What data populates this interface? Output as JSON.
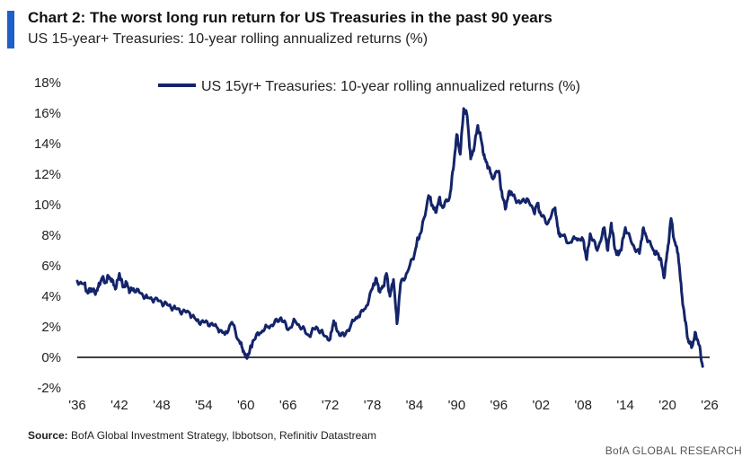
{
  "header": {
    "title": "Chart 2: The worst long run return for US Treasuries in the past 90 years",
    "subtitle": "US 15-year+ Treasuries: 10-year rolling annualized returns (%)"
  },
  "footer": {
    "source_label": "Source:",
    "source_text": "BofA Global Investment Strategy, Ibbotson, Refinitiv Datastream",
    "credit": "BofA GLOBAL RESEARCH"
  },
  "colors": {
    "accent": "#1f5fc8",
    "series": "#14246a",
    "zero_line": "#000000"
  },
  "chart_data": {
    "type": "line",
    "title": "",
    "xlabel": "",
    "ylabel": "",
    "ylim": [
      -2,
      18
    ],
    "xlim": [
      1936,
      2026
    ],
    "yticks": [
      -2,
      0,
      2,
      4,
      6,
      8,
      10,
      12,
      14,
      16,
      18
    ],
    "ytick_labels": [
      "-2%",
      "0%",
      "2%",
      "4%",
      "6%",
      "8%",
      "10%",
      "12%",
      "14%",
      "16%",
      "18%"
    ],
    "xticks": [
      1936,
      1942,
      1948,
      1954,
      1960,
      1966,
      1972,
      1978,
      1984,
      1990,
      1996,
      2002,
      2008,
      2014,
      2020,
      2026
    ],
    "xtick_labels": [
      "'36",
      "'42",
      "'48",
      "'54",
      "'60",
      "'66",
      "'72",
      "'78",
      "'84",
      "'90",
      "'96",
      "'02",
      "'08",
      "'14",
      "'20",
      "'26"
    ],
    "grid": false,
    "legend_position": "top-center",
    "series": [
      {
        "name": "US 15yr+ Treasuries: 10-year rolling annualized returns (%)",
        "x": [
          1936.0,
          1937.0,
          1937.5,
          1938.0,
          1938.5,
          1939.0,
          1939.5,
          1940.0,
          1940.5,
          1941.0,
          1941.5,
          1942.0,
          1942.5,
          1943.0,
          1943.5,
          1944.0,
          1945.0,
          1946.0,
          1947.0,
          1948.0,
          1949.0,
          1950.0,
          1951.0,
          1952.0,
          1953.0,
          1954.0,
          1955.0,
          1956.0,
          1957.0,
          1958.0,
          1959.0,
          1959.5,
          1960.0,
          1960.5,
          1961.0,
          1962.0,
          1963.0,
          1964.0,
          1965.0,
          1966.0,
          1967.0,
          1968.0,
          1969.0,
          1970.0,
          1971.0,
          1972.0,
          1972.5,
          1973.0,
          1974.0,
          1975.0,
          1976.0,
          1977.0,
          1978.0,
          1978.5,
          1979.0,
          1979.5,
          1980.0,
          1980.5,
          1981.0,
          1981.5,
          1982.0,
          1983.0,
          1984.0,
          1984.5,
          1985.0,
          1986.0,
          1986.5,
          1987.0,
          1987.5,
          1988.0,
          1989.0,
          1989.5,
          1990.0,
          1990.5,
          1991.0,
          1991.5,
          1992.0,
          1992.5,
          1993.0,
          1993.5,
          1994.0,
          1994.5,
          1995.0,
          1996.0,
          1996.5,
          1997.0,
          1997.5,
          1998.0,
          1999.0,
          2000.0,
          2001.0,
          2001.5,
          2002.0,
          2003.0,
          2004.0,
          2004.5,
          2005.0,
          2006.0,
          2007.0,
          2008.0,
          2008.5,
          2009.0,
          2010.0,
          2011.0,
          2011.5,
          2012.0,
          2012.5,
          2013.0,
          2013.5,
          2014.0,
          2015.0,
          2016.0,
          2016.5,
          2017.0,
          2018.0,
          2018.5,
          2019.0,
          2019.5,
          2020.0,
          2020.5,
          2021.0,
          2021.5,
          2022.0,
          2022.5,
          2023.0,
          2023.5,
          2024.0,
          2024.5,
          2025.0
        ],
        "values": [
          5.0,
          4.8,
          4.2,
          4.5,
          4.2,
          4.6,
          5.2,
          4.9,
          5.3,
          5.0,
          4.5,
          5.5,
          4.6,
          4.9,
          4.3,
          4.5,
          4.2,
          3.9,
          3.8,
          3.6,
          3.4,
          3.2,
          3.0,
          2.9,
          2.4,
          2.3,
          2.2,
          1.9,
          1.5,
          2.3,
          1.1,
          0.6,
          0.0,
          0.3,
          1.1,
          1.6,
          2.0,
          2.2,
          2.6,
          1.8,
          2.4,
          1.9,
          1.4,
          2.0,
          1.5,
          1.2,
          2.4,
          1.7,
          1.4,
          2.2,
          2.7,
          3.2,
          4.5,
          5.2,
          4.3,
          4.6,
          5.5,
          4.0,
          5.1,
          2.2,
          4.8,
          5.6,
          6.8,
          7.8,
          8.3,
          10.6,
          10.0,
          9.5,
          10.4,
          9.8,
          10.5,
          12.3,
          14.6,
          13.3,
          16.3,
          15.8,
          13.0,
          13.8,
          15.2,
          14.2,
          13.0,
          12.5,
          11.8,
          12.2,
          10.5,
          9.8,
          10.9,
          10.6,
          10.1,
          10.4,
          9.5,
          10.1,
          9.3,
          8.8,
          9.8,
          8.1,
          8.0,
          7.5,
          7.8,
          7.7,
          6.4,
          8.1,
          7.0,
          8.5,
          7.0,
          8.8,
          7.1,
          6.7,
          7.3,
          8.5,
          7.4,
          6.8,
          8.4,
          7.9,
          7.0,
          6.8,
          6.5,
          5.2,
          7.0,
          9.1,
          7.6,
          6.8,
          4.3,
          2.4,
          1.0,
          0.7,
          1.6,
          0.8,
          -0.6
        ]
      }
    ]
  }
}
